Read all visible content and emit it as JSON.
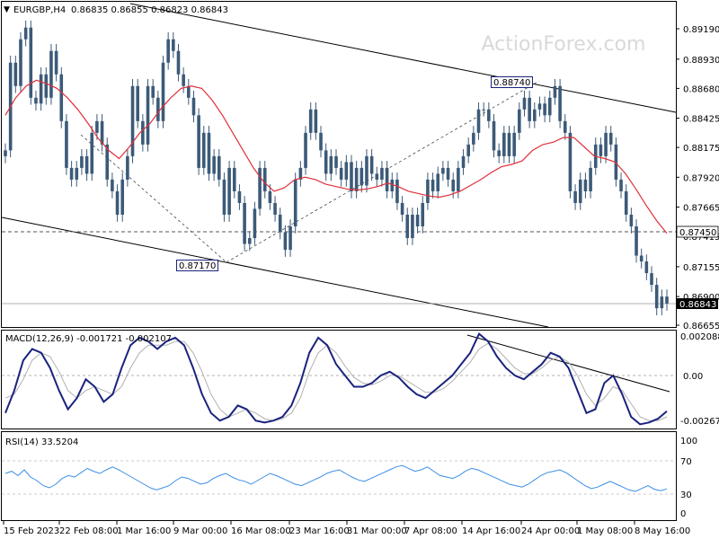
{
  "chart_data": {
    "type": "candlestick",
    "header": {
      "symbol": "EURGBP,H4",
      "ohlc": "0.86835 0.86855 0.86823 0.86843"
    },
    "watermark": "ActionForex.com",
    "colors": {
      "candle": "#3c5a78",
      "moving_average": "#e0303a",
      "trendline": "#000000",
      "macd_line": "#1a237e",
      "macd_signal": "#b0b0b0",
      "rsi_line": "#3a8ee6",
      "level_line": "#555555"
    },
    "price_panel": {
      "y_ticks": [
        "0.89190",
        "0.88930",
        "0.88680",
        "0.88425",
        "0.88175",
        "0.87920",
        "0.87665",
        "0.87415",
        "0.87155",
        "0.86900",
        "0.86655"
      ],
      "levels": [
        {
          "value": 0.8745,
          "label": "0.87450",
          "style": "dashed"
        },
        {
          "value": 0.86843,
          "label": "0.86843",
          "style": "current"
        }
      ],
      "annotations": [
        {
          "label": "0.88740",
          "value": 0.8874,
          "date": "24 Apr 2023"
        },
        {
          "label": "0.87170",
          "value": 0.8717,
          "date": "16 Mar 2023"
        }
      ],
      "close_series": [
        0.8815,
        0.889,
        0.887,
        0.891,
        0.892,
        0.886,
        0.8855,
        0.888,
        0.886,
        0.89,
        0.888,
        0.884,
        0.88,
        0.879,
        0.88,
        0.881,
        0.8795,
        0.883,
        0.884,
        0.882,
        0.879,
        0.878,
        0.876,
        0.879,
        0.881,
        0.887,
        0.884,
        0.882,
        0.887,
        0.886,
        0.884,
        0.889,
        0.891,
        0.89,
        0.888,
        0.887,
        0.886,
        0.8845,
        0.88,
        0.883,
        0.8795,
        0.881,
        0.879,
        0.876,
        0.88,
        0.878,
        0.877,
        0.8735,
        0.874,
        0.8765,
        0.88,
        0.878,
        0.877,
        0.876,
        0.8745,
        0.873,
        0.875,
        0.879,
        0.88,
        0.883,
        0.885,
        0.883,
        0.8815,
        0.8795,
        0.881,
        0.88,
        0.879,
        0.8805,
        0.878,
        0.88,
        0.8785,
        0.881,
        0.8795,
        0.879,
        0.88,
        0.878,
        0.879,
        0.877,
        0.876,
        0.874,
        0.876,
        0.875,
        0.877,
        0.879,
        0.878,
        0.8795,
        0.88,
        0.879,
        0.878,
        0.88,
        0.881,
        0.882,
        0.883,
        0.885,
        0.885,
        0.884,
        0.8815,
        0.881,
        0.883,
        0.881,
        0.883,
        0.885,
        0.886,
        0.884,
        0.885,
        0.8855,
        0.8845,
        0.886,
        0.887,
        0.884,
        0.883,
        0.878,
        0.877,
        0.879,
        0.878,
        0.88,
        0.882,
        0.881,
        0.883,
        0.882,
        0.879,
        0.878,
        0.876,
        0.875,
        0.8725,
        0.872,
        0.871,
        0.87,
        0.868,
        0.869,
        0.8684
      ],
      "ma_series": [
        0.8845,
        0.886,
        0.887,
        0.8875,
        0.8872,
        0.8868,
        0.886,
        0.885,
        0.8838,
        0.8825,
        0.8815,
        0.8808,
        0.8818,
        0.883,
        0.8838,
        0.885,
        0.886,
        0.8868,
        0.887,
        0.8868,
        0.8858,
        0.8845,
        0.883,
        0.8815,
        0.88,
        0.8788,
        0.878,
        0.8783,
        0.879,
        0.8792,
        0.879,
        0.8786,
        0.8784,
        0.8782,
        0.8781,
        0.8782,
        0.8784,
        0.8787,
        0.8784,
        0.878,
        0.8778,
        0.8776,
        0.8775,
        0.8777,
        0.878,
        0.8785,
        0.879,
        0.8796,
        0.8801,
        0.8803,
        0.8806,
        0.8815,
        0.882,
        0.8822,
        0.8826,
        0.8826,
        0.8818,
        0.881,
        0.8808,
        0.8805,
        0.8795,
        0.8782,
        0.8768,
        0.8755,
        0.8744
      ]
    },
    "macd_panel": {
      "label": "MACD(12,26,9) -0.001721 -0.002107",
      "y_ticks": [
        "0.002088",
        "0.00",
        "-0.002679"
      ],
      "macd_series": [
        -0.002,
        -0.0008,
        0.0008,
        0.0014,
        0.0012,
        0.0004,
        -0.0008,
        -0.0018,
        -0.0012,
        -0.0002,
        -0.0006,
        -0.0014,
        -0.001,
        0.0004,
        0.0016,
        0.002,
        0.0018,
        0.0014,
        0.0018,
        0.002,
        0.0016,
        0.0004,
        -0.001,
        -0.002,
        -0.0024,
        -0.0022,
        -0.0016,
        -0.0018,
        -0.0024,
        -0.0025,
        -0.0024,
        -0.0022,
        -0.0016,
        -0.0004,
        0.0012,
        0.002,
        0.0016,
        0.0006,
        0.0,
        -0.0006,
        -0.0006,
        -0.0004,
        0.0,
        0.0002,
        -0.0001,
        -0.0006,
        -0.001,
        -0.0012,
        -0.0008,
        -0.0004,
        0.0,
        0.0006,
        0.0012,
        0.0022,
        0.0018,
        0.001,
        0.0004,
        0.0,
        -0.0002,
        0.0002,
        0.0006,
        0.0012,
        0.001,
        0.0004,
        -0.0008,
        -0.002,
        -0.0018,
        -0.0004,
        0.0,
        -0.001,
        -0.0022,
        -0.0026,
        -0.0025,
        -0.0023,
        -0.0019
      ],
      "signal_series": [
        -0.0012,
        -0.001,
        -0.0002,
        0.0008,
        0.0012,
        0.001,
        0.0002,
        -0.0008,
        -0.0012,
        -0.0008,
        -0.0006,
        -0.0008,
        -0.001,
        -0.0006,
        0.0004,
        0.0012,
        0.0016,
        0.0016,
        0.0016,
        0.0018,
        0.0018,
        0.0012,
        0.0002,
        -0.001,
        -0.0018,
        -0.0022,
        -0.002,
        -0.0018,
        -0.002,
        -0.0023,
        -0.0024,
        -0.0023,
        -0.002,
        -0.0012,
        0.0002,
        0.0012,
        0.0016,
        0.0012,
        0.0005,
        -0.0001,
        -0.0004,
        -0.0005,
        -0.0003,
        0.0,
        0.0,
        -0.0003,
        -0.0006,
        -0.0009,
        -0.0009,
        -0.0007,
        -0.0003,
        0.0002,
        0.0007,
        0.0014,
        0.0017,
        0.0014,
        0.0009,
        0.0004,
        0.0001,
        0.0001,
        0.0004,
        0.0008,
        0.001,
        0.0007,
        0.0,
        -0.001,
        -0.0016,
        -0.0012,
        -0.0006,
        -0.0008,
        -0.0015,
        -0.0022,
        -0.0024,
        -0.0024,
        -0.0022
      ]
    },
    "rsi_panel": {
      "label": "RSI(14) 33.5204",
      "y_ticks": [
        "100",
        "70",
        "30",
        "0"
      ],
      "levels": [
        70,
        30
      ],
      "rsi_series": [
        55,
        58,
        52,
        60,
        50,
        45,
        38,
        35,
        40,
        48,
        52,
        50,
        56,
        62,
        58,
        55,
        60,
        64,
        60,
        55,
        50,
        45,
        40,
        35,
        32,
        35,
        38,
        45,
        50,
        48,
        44,
        40,
        42,
        48,
        52,
        55,
        50,
        46,
        44,
        40,
        45,
        50,
        55,
        52,
        48,
        44,
        40,
        38,
        42,
        46,
        50,
        55,
        58,
        60,
        55,
        50,
        46,
        44,
        48,
        52,
        56,
        60,
        64,
        66,
        62,
        58,
        60,
        64,
        58,
        52,
        50,
        48,
        52,
        58,
        62,
        60,
        56,
        52,
        48,
        44,
        40,
        38,
        36,
        40,
        46,
        52,
        56,
        58,
        60,
        56,
        50,
        44,
        38,
        34,
        36,
        40,
        44,
        40,
        36,
        32,
        30,
        34,
        38,
        33,
        31,
        33.5
      ]
    },
    "x_ticks": [
      "15 Feb 2023",
      "22 Feb 08:00",
      "1 Mar 16:00",
      "9 Mar 00:00",
      "16 Mar 08:00",
      "23 Mar 16:00",
      "31 Mar 00:00",
      "7 Apr 08:00",
      "14 Apr 16:00",
      "24 Apr 00:00",
      "1 May 08:00",
      "8 May 16:00"
    ]
  }
}
